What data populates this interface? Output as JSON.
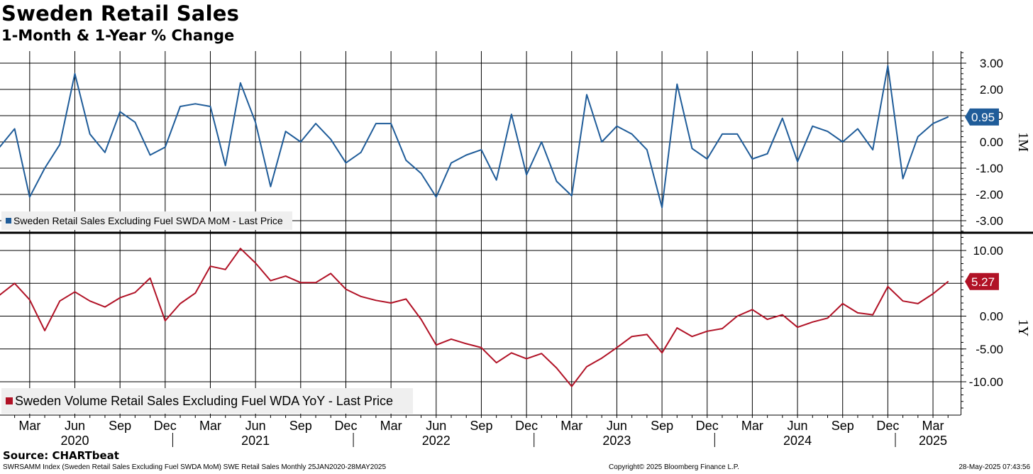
{
  "title": "Sweden Retail Sales",
  "subtitle": "1-Month & 1-Year % Change",
  "source": "Source: CHARTbeat",
  "footer": {
    "left": "SWRSAMM Index (Sweden Retail Sales Excluding Fuel SWDA MoM) SWE Retail Sales  Monthly 25JAN2020-28MAY2025",
    "center": "Copyright© 2025 Bloomberg Finance L.P.",
    "right": "28-May-2025 07:43:56"
  },
  "colors": {
    "mom": "#1f5c99",
    "yoy": "#b11226",
    "grid": "#000000",
    "legend_bg": "#efefef"
  },
  "chart_data": [
    {
      "type": "line",
      "panel": "1M",
      "title": "",
      "ylim": [
        -3.4,
        3.4
      ],
      "yticks": [
        "3.00",
        "2.00",
        "1.00",
        "0.95",
        "0.00",
        "-1.00",
        "-2.00",
        "-3.00"
      ],
      "ytick_values": [
        3,
        2,
        1,
        0,
        -1,
        -2,
        -3
      ],
      "last_value_label": "0.95",
      "legend": "Sweden Retail Sales Excluding Fuel SWDA MoM - Last Price",
      "axis_label": "1M",
      "grid": true,
      "series": [
        {
          "name": "Sweden Retail Sales Excluding Fuel SWDA MoM - Last Price",
          "x_start": "2020-01",
          "values": [
            -0.2,
            0.5,
            -2.1,
            -1.0,
            -0.1,
            2.6,
            0.3,
            -0.4,
            1.15,
            0.75,
            -0.5,
            -0.2,
            1.35,
            1.45,
            1.35,
            -0.9,
            2.25,
            0.75,
            -1.7,
            0.4,
            0.0,
            0.7,
            0.1,
            -0.8,
            -0.4,
            0.7,
            0.7,
            -0.7,
            -1.2,
            -2.1,
            -0.8,
            -0.5,
            -0.3,
            -1.45,
            1.05,
            -1.25,
            0.0,
            -1.5,
            -2.05,
            1.8,
            0.0,
            0.6,
            0.3,
            -0.3,
            -2.5,
            2.2,
            -0.25,
            -0.65,
            0.3,
            0.3,
            -0.65,
            -0.45,
            0.9,
            -0.75,
            0.6,
            0.4,
            0.0,
            0.5,
            -0.3,
            2.9,
            -1.4,
            0.2,
            0.7,
            0.95
          ]
        }
      ]
    },
    {
      "type": "line",
      "panel": "1Y",
      "title": "",
      "ylim": [
        -15,
        12
      ],
      "yticks": [
        "10.00",
        "5.27",
        "0.00",
        "-5.00",
        "-10.00"
      ],
      "ytick_values": [
        10,
        5,
        0,
        -5,
        -10
      ],
      "last_value_label": "5.27",
      "legend": "Sweden Volume Retail Sales Excluding Fuel WDA YoY - Last Price",
      "axis_label": "1Y",
      "grid": true,
      "series": [
        {
          "name": "Sweden Volume Retail Sales Excluding Fuel WDA YoY - Last Price",
          "x_start": "2020-01",
          "values": [
            3.2,
            5.0,
            2.5,
            -2.2,
            2.3,
            3.7,
            2.3,
            1.4,
            2.8,
            3.6,
            5.8,
            -0.7,
            1.9,
            3.5,
            7.6,
            7.1,
            10.3,
            8.1,
            5.4,
            6.1,
            5.1,
            5.1,
            6.5,
            4.1,
            3.0,
            2.4,
            2.0,
            2.6,
            -0.5,
            -4.4,
            -3.5,
            -4.2,
            -4.8,
            -7.1,
            -5.6,
            -6.5,
            -5.7,
            -7.9,
            -10.7,
            -7.7,
            -6.4,
            -4.8,
            -3.1,
            -2.8,
            -5.6,
            -1.8,
            -3.1,
            -2.3,
            -1.9,
            0.0,
            1.0,
            -0.5,
            0.2,
            -1.7,
            -0.9,
            -0.3,
            1.9,
            0.5,
            0.2,
            4.5,
            2.3,
            1.9,
            3.4,
            5.27
          ]
        }
      ]
    }
  ],
  "x_axis": {
    "month_labels": [
      "Mar",
      "Jun",
      "Sep",
      "Dec",
      "Mar",
      "Jun",
      "Sep",
      "Dec",
      "Mar",
      "Jun",
      "Sep",
      "Dec",
      "Mar",
      "Jun",
      "Sep",
      "Dec",
      "Mar",
      "Jun",
      "Sep",
      "Dec",
      "Mar"
    ],
    "month_indices": [
      2,
      5,
      8,
      11,
      14,
      17,
      20,
      23,
      26,
      29,
      32,
      35,
      38,
      41,
      44,
      47,
      50,
      53,
      56,
      59,
      62
    ],
    "year_labels": [
      "2020",
      "2021",
      "2022",
      "2023",
      "2024",
      "2025"
    ],
    "year_indices": [
      5,
      17,
      29,
      41,
      53,
      62
    ]
  }
}
